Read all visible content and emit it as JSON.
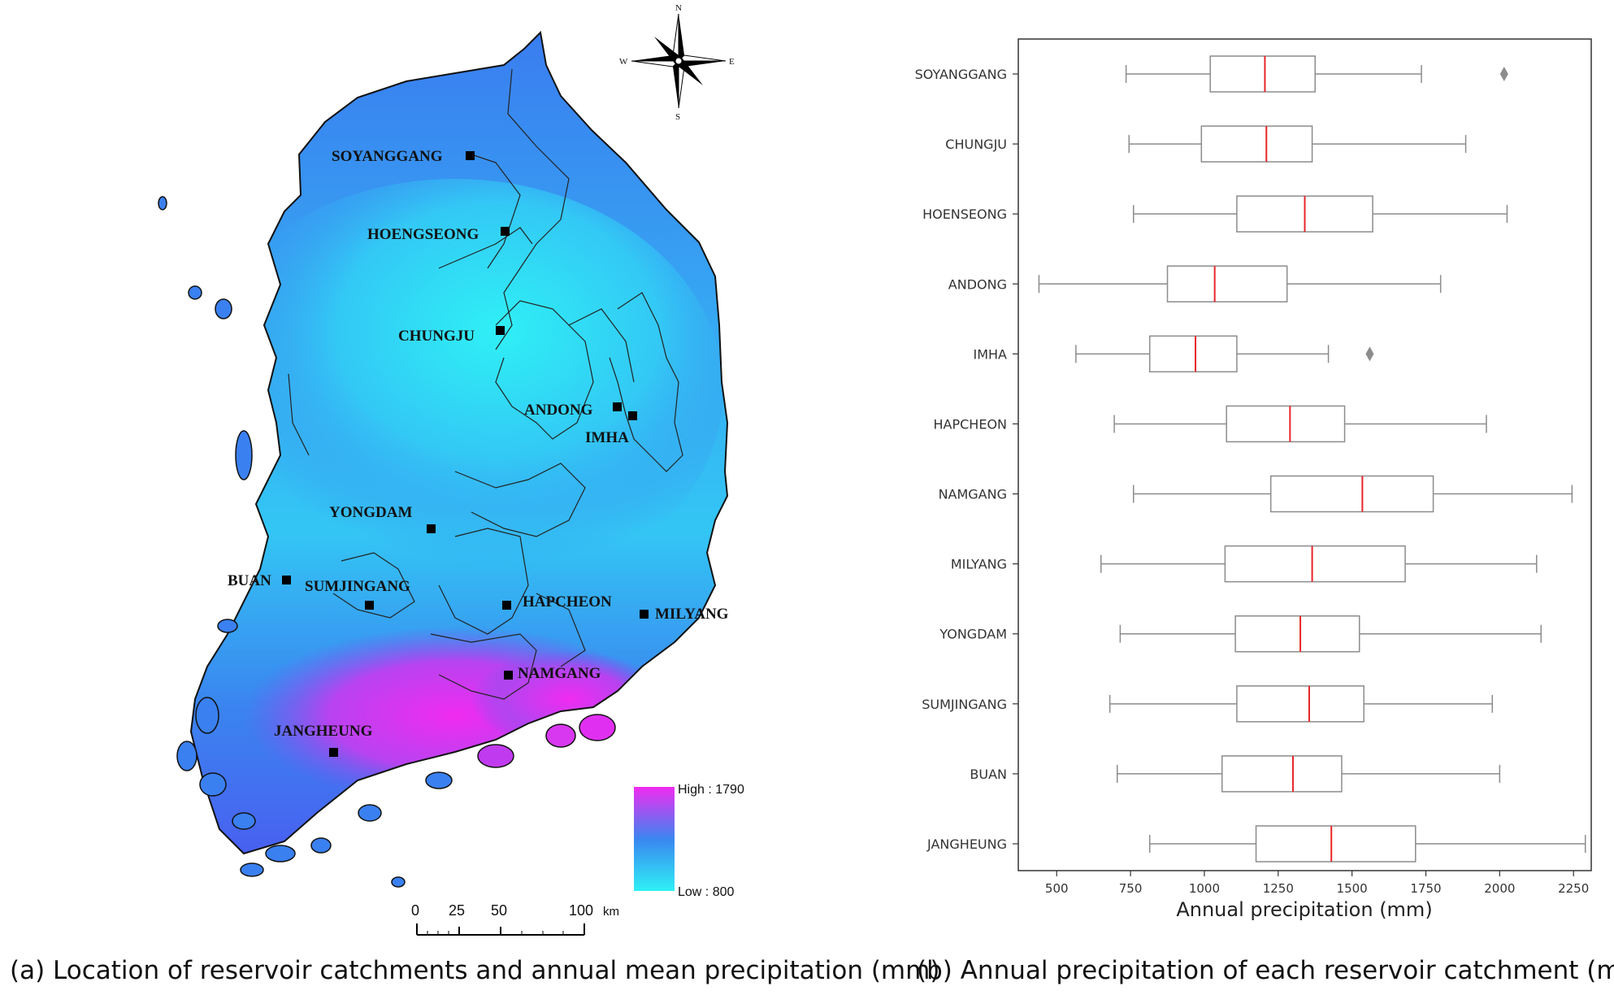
{
  "map": {
    "caption": "(a) Location of reservoir catchments and annual mean precipitation (mm)",
    "compass": {
      "n": "N",
      "s": "S",
      "e": "E",
      "w": "W"
    },
    "legend": {
      "high": "High : 1790",
      "low": "Low : 800",
      "colors": [
        "#f02bf0",
        "#3a86f0",
        "#2ff0f5"
      ]
    },
    "scale_bar": {
      "ticks": [
        "0",
        "25",
        "50",
        "100"
      ],
      "unit": "km"
    },
    "reservoirs": [
      {
        "name": "SOYANGGANG"
      },
      {
        "name": "HOENGSEONG"
      },
      {
        "name": "CHUNGJU"
      },
      {
        "name": "ANDONG"
      },
      {
        "name": "IMHA"
      },
      {
        "name": "YONGDAM"
      },
      {
        "name": "BUAN"
      },
      {
        "name": "SUMJINGANG"
      },
      {
        "name": "HAPCHEON"
      },
      {
        "name": "MILYANG"
      },
      {
        "name": "NAMGANG"
      },
      {
        "name": "JANGHEUNG"
      }
    ]
  },
  "chart_data": {
    "type": "box",
    "caption": "(b) Annual precipitation of each reservoir catchment (mm)",
    "xlabel": "Annual precipitation (mm)",
    "xlim": [
      370,
      2310
    ],
    "xticks": [
      500,
      750,
      1000,
      1250,
      1500,
      1750,
      2000,
      2250
    ],
    "colors": {
      "box": "#8c8c8c",
      "median": "#e8262a",
      "outlier": "#8c8c8c"
    },
    "categories": [
      "SOYANGGANG",
      "CHUNGJU",
      "HOENSEONG",
      "ANDONG",
      "IMHA",
      "HAPCHEON",
      "NAMGANG",
      "MILYANG",
      "YONGDAM",
      "SUMJINGANG",
      "BUAN",
      "JANGHEUNG"
    ],
    "boxes": [
      {
        "whislo": 735,
        "q1": 1020,
        "med": 1205,
        "q3": 1375,
        "whishi": 1735,
        "fliers": [
          2015
        ]
      },
      {
        "whislo": 745,
        "q1": 990,
        "med": 1210,
        "q3": 1365,
        "whishi": 1885,
        "fliers": []
      },
      {
        "whislo": 760,
        "q1": 1110,
        "med": 1340,
        "q3": 1570,
        "whishi": 2025,
        "fliers": []
      },
      {
        "whislo": 440,
        "q1": 875,
        "med": 1035,
        "q3": 1280,
        "whishi": 1800,
        "fliers": []
      },
      {
        "whislo": 565,
        "q1": 815,
        "med": 970,
        "q3": 1110,
        "whishi": 1420,
        "fliers": [
          1560
        ]
      },
      {
        "whislo": 695,
        "q1": 1075,
        "med": 1290,
        "q3": 1475,
        "whishi": 1955,
        "fliers": []
      },
      {
        "whislo": 760,
        "q1": 1225,
        "med": 1535,
        "q3": 1775,
        "whishi": 2245,
        "fliers": []
      },
      {
        "whislo": 650,
        "q1": 1070,
        "med": 1365,
        "q3": 1680,
        "whishi": 2125,
        "fliers": []
      },
      {
        "whislo": 715,
        "q1": 1105,
        "med": 1325,
        "q3": 1525,
        "whishi": 2140,
        "fliers": []
      },
      {
        "whislo": 680,
        "q1": 1110,
        "med": 1355,
        "q3": 1540,
        "whishi": 1975,
        "fliers": []
      },
      {
        "whislo": 705,
        "q1": 1060,
        "med": 1300,
        "q3": 1465,
        "whishi": 2000,
        "fliers": []
      },
      {
        "whislo": 815,
        "q1": 1175,
        "med": 1430,
        "q3": 1715,
        "whishi": 2290,
        "fliers": []
      }
    ]
  }
}
